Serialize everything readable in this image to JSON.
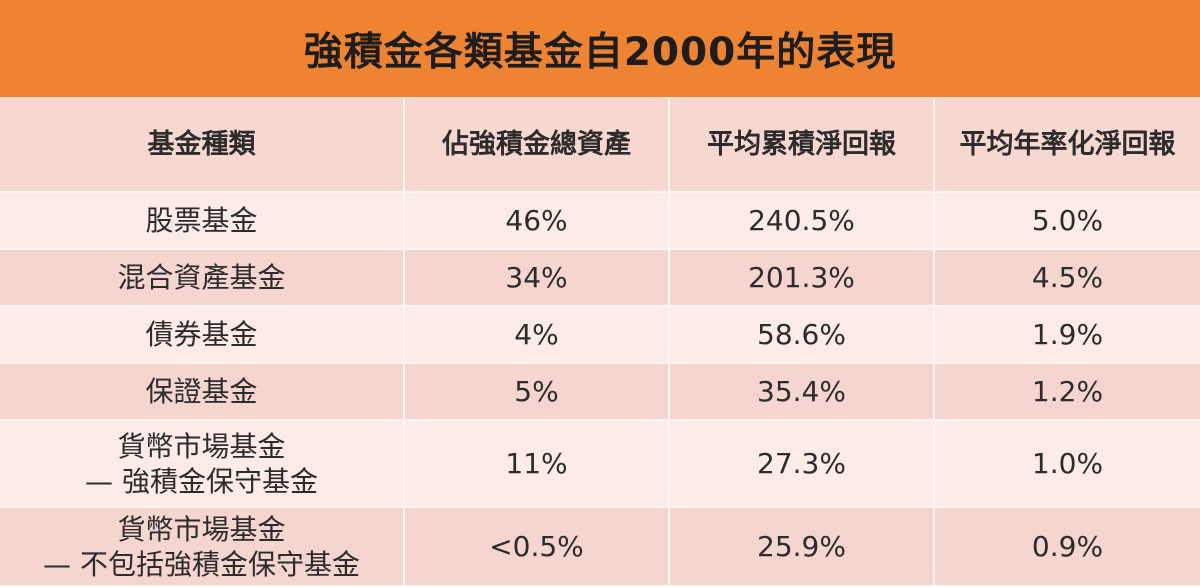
{
  "title": "強積金各類基金自2000年的表現",
  "table": {
    "headers": [
      "基金種類",
      "佔強積金總資產",
      "平均累積淨回報",
      "平均年率化淨回報"
    ],
    "rows": [
      [
        "股票基金",
        "46%",
        "240.5%",
        "5.0%"
      ],
      [
        "混合資產基金",
        "34%",
        "201.3%",
        "4.5%"
      ],
      [
        "債券基金",
        "4%",
        "58.6%",
        "1.9%"
      ],
      [
        "保證基金",
        "5%",
        "35.4%",
        "1.2%"
      ],
      [
        "貨幣市場基金\n— 強積金保守基金",
        "11%",
        "27.3%",
        "1.0%"
      ],
      [
        "貨幣市場基金\n— 不包括強積金保守基金",
        "<0.5%",
        "25.9%",
        "0.9%"
      ]
    ]
  },
  "colors": {
    "title_bar": "#ee8432",
    "header_bg": "#f6d8d0",
    "row_light": "#fcebe7",
    "row_dark": "#f5d5cf"
  }
}
